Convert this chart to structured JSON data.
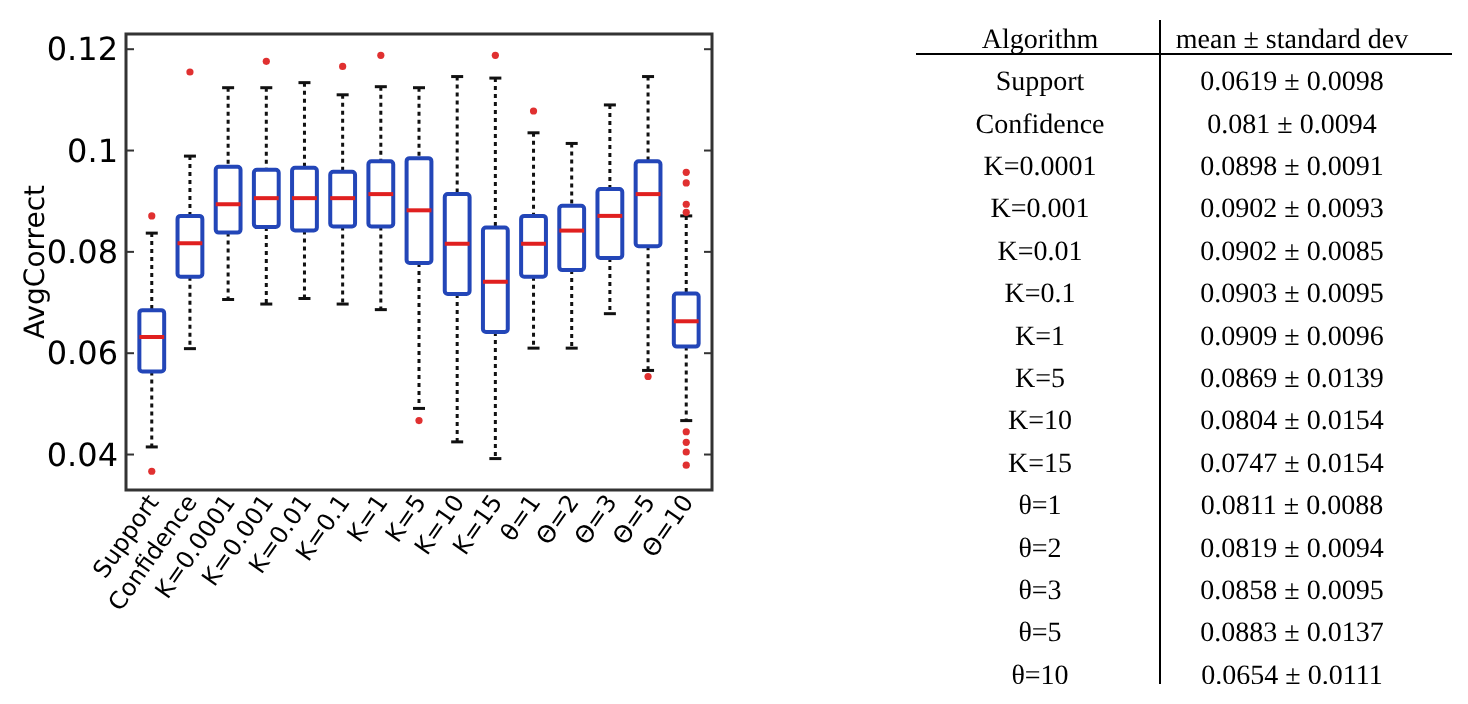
{
  "chart_data": [
    {
      "type": "box",
      "ylabel": "AvgCorrect",
      "categories": [
        "Support",
        "Confidence",
        "K=0.0001",
        "K=0.001",
        "K=0.01",
        "K=0.1",
        "K=1",
        "K=5",
        "K=10",
        "K=15",
        "θ=1",
        "Θ=2",
        "Θ=3",
        "Θ=5",
        "Θ=10"
      ],
      "ylim": [
        0.033,
        0.123
      ],
      "yticks": [
        0.04,
        0.06,
        0.08,
        {
          "value": 0.1,
          "label": "0.1"
        },
        0.12
      ],
      "grid": false,
      "series": [
        {
          "color": "#2346b8",
          "boxes": [
            {
              "low": 0.0415,
              "q1": 0.0564,
              "median": 0.0632,
              "q3": 0.0685,
              "high": 0.0837,
              "outliers": [
                0.0871,
                0.0367
              ]
            },
            {
              "low": 0.0609,
              "q1": 0.0751,
              "median": 0.0817,
              "q3": 0.0871,
              "high": 0.0989,
              "outliers": [
                0.1155
              ]
            },
            {
              "low": 0.0706,
              "q1": 0.0838,
              "median": 0.0894,
              "q3": 0.0968,
              "high": 0.1124
            },
            {
              "low": 0.0697,
              "q1": 0.0849,
              "median": 0.0906,
              "q3": 0.0962,
              "high": 0.1124,
              "outliers": [
                0.1176
              ]
            },
            {
              "low": 0.0708,
              "q1": 0.0842,
              "median": 0.0906,
              "q3": 0.0966,
              "high": 0.1134
            },
            {
              "low": 0.0697,
              "q1": 0.085,
              "median": 0.0906,
              "q3": 0.0958,
              "high": 0.111,
              "outliers": [
                0.1166
              ]
            },
            {
              "low": 0.0686,
              "q1": 0.085,
              "median": 0.0914,
              "q3": 0.0979,
              "high": 0.1126,
              "outliers": [
                0.1188
              ]
            },
            {
              "low": 0.0491,
              "q1": 0.0778,
              "median": 0.0882,
              "q3": 0.0985,
              "high": 0.1124,
              "outliers": [
                0.0467
              ]
            },
            {
              "low": 0.0425,
              "q1": 0.0717,
              "median": 0.0816,
              "q3": 0.0914,
              "high": 0.1146
            },
            {
              "low": 0.0392,
              "q1": 0.0642,
              "median": 0.0741,
              "q3": 0.0848,
              "high": 0.1143,
              "outliers": [
                0.1188
              ]
            },
            {
              "low": 0.061,
              "q1": 0.0751,
              "median": 0.0816,
              "q3": 0.0871,
              "high": 0.1035,
              "outliers": [
                0.1078
              ]
            },
            {
              "low": 0.061,
              "q1": 0.0764,
              "median": 0.0842,
              "q3": 0.0891,
              "high": 0.1014
            },
            {
              "low": 0.0678,
              "q1": 0.0788,
              "median": 0.0871,
              "q3": 0.0924,
              "high": 0.109
            },
            {
              "low": 0.0566,
              "q1": 0.0811,
              "median": 0.0914,
              "q3": 0.0979,
              "high": 0.1146,
              "outliers": [
                0.0554
              ]
            },
            {
              "low": 0.0467,
              "q1": 0.0613,
              "median": 0.0663,
              "q3": 0.0718,
              "high": 0.0871,
              "outliers": [
                0.0957,
                0.0936,
                0.0894,
                0.0878,
                0.0445,
                0.0424,
                0.0405,
                0.0379
              ]
            }
          ]
        }
      ]
    },
    {
      "type": "other",
      "annotations": [
        "Algorithm",
        "mean ± standard dev",
        "Support",
        "0.0619 ± 0.0098",
        "Confidence",
        "0.081 ± 0.0094",
        "K=0.0001",
        "0.0898 ± 0.0091",
        "K=0.001",
        "0.0902 ± 0.0093",
        "K=0.01",
        "0.0902 ± 0.0085",
        "K=0.1",
        "0.0903 ± 0.0095",
        "K=1",
        "0.0909 ± 0.0096",
        "K=5",
        "0.0869 ± 0.0139",
        "K=10",
        "0.0804 ± 0.0154",
        "K=15",
        "0.0747 ± 0.0154",
        "θ=1",
        "0.0811 ± 0.0088",
        "θ=2",
        "0.0819 ± 0.0094",
        "θ=3",
        "0.0858 ± 0.0095",
        "θ=5",
        "0.0883 ± 0.0137",
        "θ=10",
        "0.0654 ± 0.0111"
      ]
    }
  ]
}
